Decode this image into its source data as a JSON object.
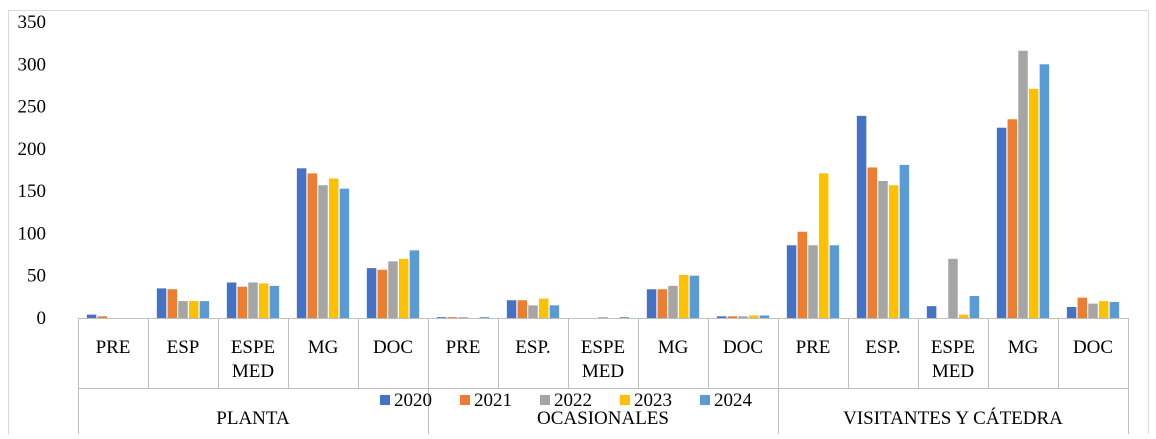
{
  "chart_data": {
    "type": "bar",
    "title": "",
    "xlabel": "",
    "ylabel": "",
    "ylim": [
      0,
      350
    ],
    "yticks": [
      "0",
      "50",
      "100",
      "150",
      "200",
      "250",
      "300",
      "350"
    ],
    "grid": false,
    "legend_position": "bottom",
    "groups": [
      {
        "label": "PLANTA",
        "categories": [
          {
            "label": [
              "PRE"
            ]
          },
          {
            "label": [
              "ESP"
            ]
          },
          {
            "label": [
              "ESPE",
              "MED"
            ]
          },
          {
            "label": [
              "MG"
            ]
          },
          {
            "label": [
              "DOC"
            ]
          }
        ]
      },
      {
        "label": "OCASIONALES",
        "categories": [
          {
            "label": [
              "PRE"
            ]
          },
          {
            "label": [
              "ESP."
            ]
          },
          {
            "label": [
              "ESPE",
              "MED"
            ]
          },
          {
            "label": [
              "MG"
            ]
          },
          {
            "label": [
              "DOC"
            ]
          }
        ]
      },
      {
        "label": "VISITANTES Y CÁTEDRA",
        "categories": [
          {
            "label": [
              "PRE"
            ]
          },
          {
            "label": [
              "ESP."
            ]
          },
          {
            "label": [
              "ESPE",
              "MED"
            ]
          },
          {
            "label": [
              "MG"
            ]
          },
          {
            "label": [
              "DOC"
            ]
          }
        ]
      }
    ],
    "series": [
      {
        "name": "2020",
        "color": "#4472c4",
        "values": [
          4,
          35,
          42,
          177,
          59,
          1,
          21,
          0,
          34,
          2,
          86,
          239,
          14,
          225,
          13
        ]
      },
      {
        "name": "2021",
        "color": "#ed7d31",
        "values": [
          2,
          34,
          37,
          171,
          57,
          1,
          21,
          0,
          34,
          2,
          102,
          178,
          0,
          235,
          24
        ]
      },
      {
        "name": "2022",
        "color": "#a5a5a5",
        "values": [
          0,
          20,
          42,
          157,
          67,
          1,
          15,
          1,
          38,
          2,
          86,
          162,
          70,
          316,
          17
        ]
      },
      {
        "name": "2023",
        "color": "#ffc000",
        "values": [
          0,
          20,
          41,
          165,
          70,
          0,
          23,
          0,
          51,
          3,
          171,
          157,
          4,
          271,
          20
        ]
      },
      {
        "name": "2024",
        "color": "#5b9bd5",
        "values": [
          0,
          20,
          38,
          153,
          80,
          1,
          15,
          1,
          50,
          3,
          86,
          181,
          26,
          300,
          19
        ]
      }
    ]
  }
}
